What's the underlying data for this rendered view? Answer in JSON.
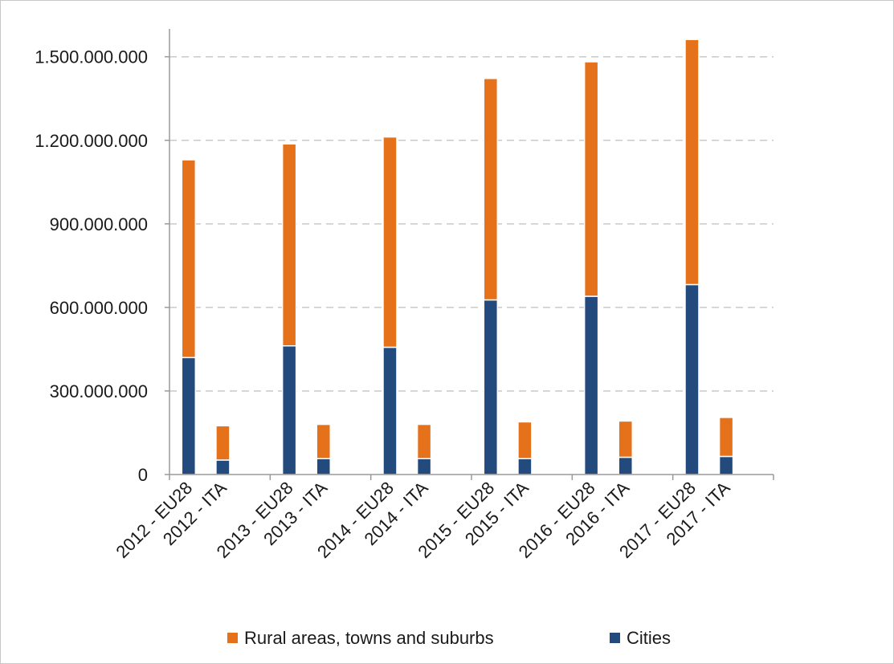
{
  "chart_data": {
    "type": "bar",
    "stacked": true,
    "title": "",
    "xlabel": "",
    "ylabel": "",
    "categories": [
      "2012 - EU28",
      "2012 - ITA",
      "2013 - EU28",
      "2013 - ITA",
      "2014 - EU28",
      "2014 - ITA",
      "2015 - EU28",
      "2015 - ITA",
      "2016 - EU28",
      "2016 - ITA",
      "2017 - EU28",
      "2017 - ITA"
    ],
    "series": [
      {
        "name": "Cities",
        "color": "#234a7c",
        "values": [
          420000000,
          52000000,
          462000000,
          57000000,
          457000000,
          57000000,
          627000000,
          57000000,
          640000000,
          62000000,
          682000000,
          65000000
        ]
      },
      {
        "name": "Rural areas, towns and suburbs",
        "color": "#e5711b",
        "values": [
          710000000,
          123000000,
          725000000,
          123000000,
          755000000,
          123000000,
          795000000,
          132000000,
          842000000,
          130000000,
          880000000,
          140000000
        ]
      }
    ],
    "ylim": [
      0,
      1600000000
    ],
    "yticks": [
      0,
      300000000,
      600000000,
      900000000,
      1200000000,
      1500000000
    ],
    "ytick_labels": [
      "0",
      "300.000.000",
      "600.000.000",
      "900.000.000",
      "1.200.000.000",
      "1.500.000.000"
    ],
    "grid": true,
    "legend": {
      "position": "bottom",
      "order": [
        "Rural areas, towns and suburbs",
        "Cities"
      ]
    }
  }
}
